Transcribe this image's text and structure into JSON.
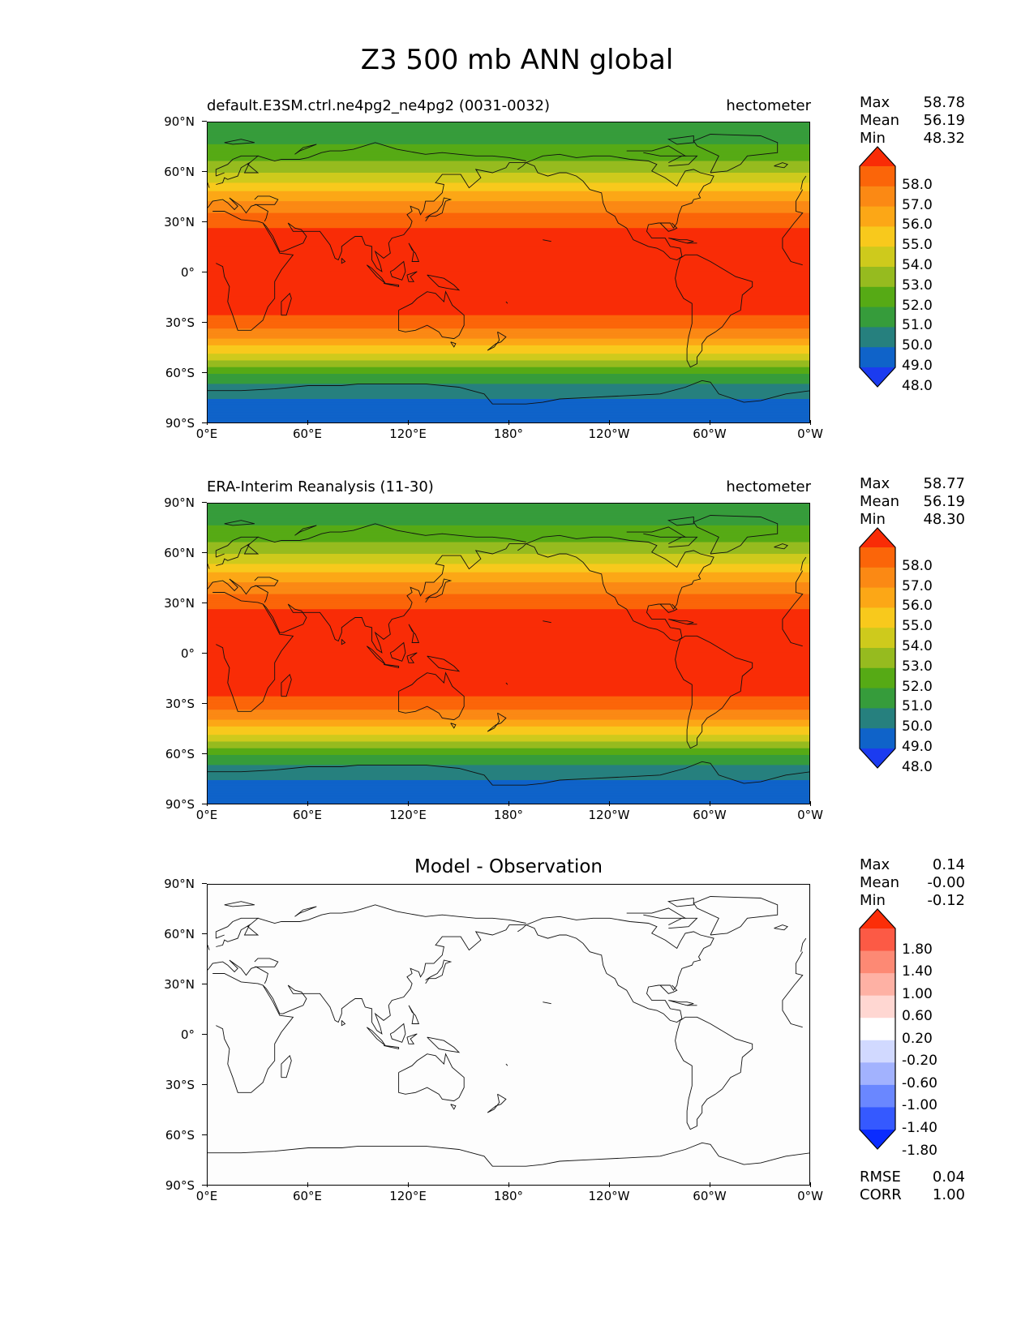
{
  "figure": {
    "title": "Z3 500 mb ANN global",
    "x_ticks": [
      "0°E",
      "60°E",
      "120°E",
      "180°",
      "120°W",
      "60°W",
      "0°W"
    ],
    "y_ticks": [
      "90°N",
      "60°N",
      "30°N",
      "0°",
      "30°S",
      "60°S",
      "90°S"
    ]
  },
  "panels": [
    {
      "title_left": "default.E3SM.ctrl.ne4pg2_ne4pg2 (0031-0032)",
      "title_right": "hectometer",
      "stats": [
        {
          "label": "Max",
          "value": "58.78"
        },
        {
          "label": "Mean",
          "value": "56.19"
        },
        {
          "label": "Min",
          "value": "48.32"
        }
      ],
      "colorbar": {
        "labels": [
          "58.0",
          "57.0",
          "56.0",
          "55.0",
          "54.0",
          "53.0",
          "52.0",
          "51.0",
          "50.0",
          "49.0",
          "48.0"
        ],
        "colors": [
          "#1b3bf0",
          "#0f63c9",
          "#26807e",
          "#369c3b",
          "#56aa15",
          "#96bb1f",
          "#ceca1c",
          "#f8c91c",
          "#fca716",
          "#fb8914",
          "#fb6509",
          "#f92c06"
        ]
      }
    },
    {
      "title_left": "ERA-Interim Reanalysis (11-30)",
      "title_right": "hectometer",
      "stats": [
        {
          "label": "Max",
          "value": "58.77"
        },
        {
          "label": "Mean",
          "value": "56.19"
        },
        {
          "label": "Min",
          "value": "48.30"
        }
      ],
      "colorbar": {
        "labels": [
          "58.0",
          "57.0",
          "56.0",
          "55.0",
          "54.0",
          "53.0",
          "52.0",
          "51.0",
          "50.0",
          "49.0",
          "48.0"
        ],
        "colors": [
          "#1b3bf0",
          "#0f63c9",
          "#26807e",
          "#369c3b",
          "#56aa15",
          "#96bb1f",
          "#ceca1c",
          "#f8c91c",
          "#fca716",
          "#fb8914",
          "#fb6509",
          "#f92c06"
        ]
      }
    },
    {
      "title_center": "Model - Observation",
      "stats": [
        {
          "label": "Max",
          "value": "0.14"
        },
        {
          "label": "Mean",
          "value": "-0.00"
        },
        {
          "label": "Min",
          "value": "-0.12"
        }
      ],
      "colorbar": {
        "labels": [
          "1.80",
          "1.40",
          "1.00",
          "0.60",
          "0.20",
          "-0.20",
          "-0.60",
          "-1.00",
          "-1.40",
          "-1.80"
        ],
        "colors": [
          "#0a2cff",
          "#3559ff",
          "#6a87ff",
          "#a2b2fe",
          "#d1d9ff",
          "#ffffff",
          "#ffd7d2",
          "#feb1a4",
          "#fd8974",
          "#fc5a45",
          "#fc2e08"
        ]
      },
      "bottom_stats": [
        {
          "label": "RMSE",
          "value": "0.04"
        },
        {
          "label": "CORR",
          "value": "1.00"
        }
      ]
    }
  ],
  "chart_data": [
    {
      "type": "heatmap",
      "title": "default.E3SM.ctrl.ne4pg2_ne4pg2 (0031-0032)",
      "units": "hectometer",
      "x_range": [
        0,
        360
      ],
      "y_range": [
        -90,
        90
      ],
      "contour_levels": [
        48,
        49,
        50,
        51,
        52,
        53,
        54,
        55,
        56,
        57,
        58
      ],
      "zonal_profile": [
        {
          "lat": 90,
          "value": 50.5
        },
        {
          "lat": 80,
          "value": 50.7
        },
        {
          "lat": 70,
          "value": 51.6
        },
        {
          "lat": 60,
          "value": 53.0
        },
        {
          "lat": 50,
          "value": 54.8
        },
        {
          "lat": 40,
          "value": 56.5
        },
        {
          "lat": 30,
          "value": 57.8
        },
        {
          "lat": 20,
          "value": 58.4
        },
        {
          "lat": 0,
          "value": 58.6
        },
        {
          "lat": -20,
          "value": 58.4
        },
        {
          "lat": -30,
          "value": 57.6
        },
        {
          "lat": -40,
          "value": 55.8
        },
        {
          "lat": -50,
          "value": 53.5
        },
        {
          "lat": -60,
          "value": 51.0
        },
        {
          "lat": -70,
          "value": 49.4
        },
        {
          "lat": -80,
          "value": 48.6
        },
        {
          "lat": -90,
          "value": 48.4
        }
      ],
      "max": 58.78,
      "mean": 56.19,
      "min": 48.32
    },
    {
      "type": "heatmap",
      "title": "ERA-Interim Reanalysis (11-30)",
      "units": "hectometer",
      "x_range": [
        0,
        360
      ],
      "y_range": [
        -90,
        90
      ],
      "contour_levels": [
        48,
        49,
        50,
        51,
        52,
        53,
        54,
        55,
        56,
        57,
        58
      ],
      "zonal_profile": [
        {
          "lat": 90,
          "value": 50.5
        },
        {
          "lat": 80,
          "value": 50.7
        },
        {
          "lat": 70,
          "value": 51.6
        },
        {
          "lat": 60,
          "value": 53.0
        },
        {
          "lat": 50,
          "value": 54.8
        },
        {
          "lat": 40,
          "value": 56.5
        },
        {
          "lat": 30,
          "value": 57.8
        },
        {
          "lat": 20,
          "value": 58.4
        },
        {
          "lat": 0,
          "value": 58.6
        },
        {
          "lat": -20,
          "value": 58.4
        },
        {
          "lat": -30,
          "value": 57.6
        },
        {
          "lat": -40,
          "value": 55.8
        },
        {
          "lat": -50,
          "value": 53.5
        },
        {
          "lat": -60,
          "value": 51.0
        },
        {
          "lat": -70,
          "value": 49.4
        },
        {
          "lat": -80,
          "value": 48.6
        },
        {
          "lat": -90,
          "value": 48.4
        }
      ],
      "max": 58.77,
      "mean": 56.19,
      "min": 48.3
    },
    {
      "type": "heatmap",
      "title": "Model - Observation",
      "x_range": [
        0,
        360
      ],
      "y_range": [
        -90,
        90
      ],
      "contour_levels": [
        -1.8,
        -1.4,
        -1.0,
        -0.6,
        -0.2,
        0.2,
        0.6,
        1.0,
        1.4,
        1.8
      ],
      "field": "near zero everywhere",
      "max": 0.14,
      "mean": -0.0,
      "min": -0.12,
      "rmse": 0.04,
      "corr": 1.0
    }
  ]
}
